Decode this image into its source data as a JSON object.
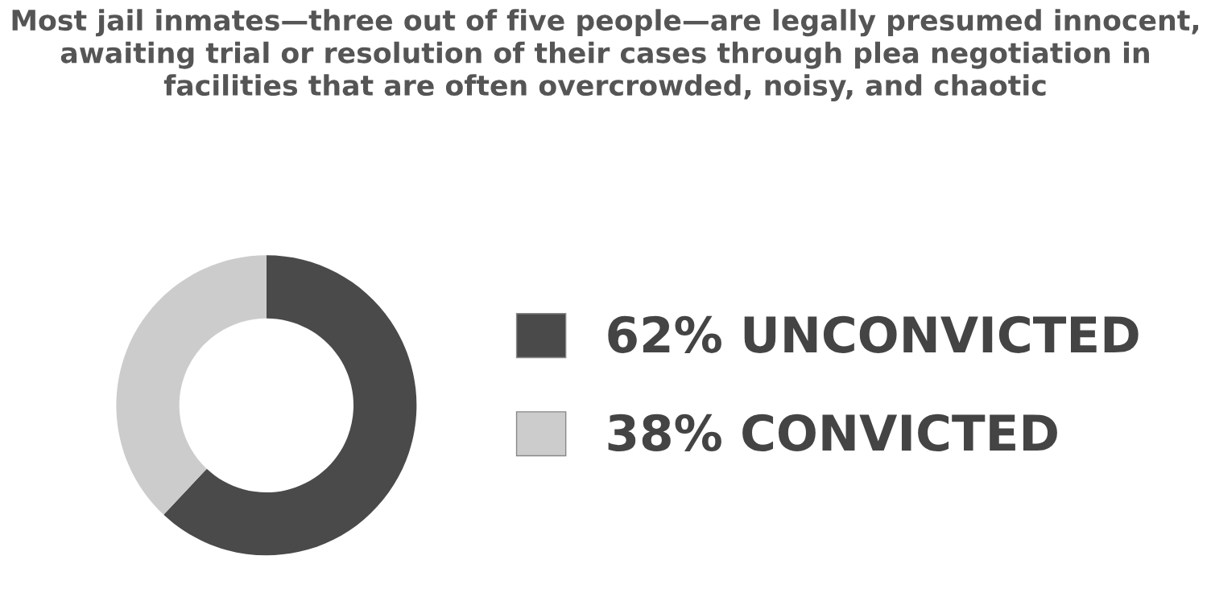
{
  "chart_data": {
    "type": "donut",
    "title": "Most jail inmates—three out of five people—are legally presumed innocent, awaiting trial or resolution of their cases through plea negotiation in facilities that are often overcrowded, noisy, and chaotic",
    "categories": [
      "UNCONVICTED",
      "CONVICTED"
    ],
    "values": [
      62,
      38
    ],
    "value_labels": [
      "62%",
      "38%"
    ],
    "colors": [
      "#4a4a4a",
      "#cccccc"
    ],
    "legend": "right"
  }
}
